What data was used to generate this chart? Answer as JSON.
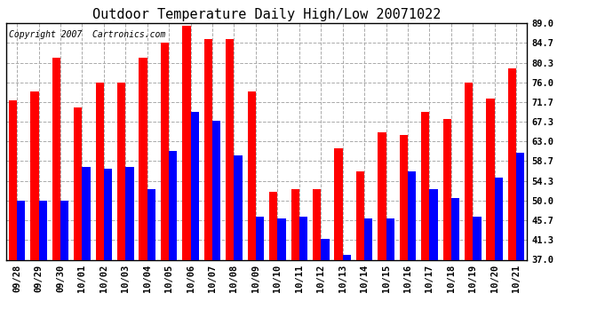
{
  "title": "Outdoor Temperature Daily High/Low 20071022",
  "copyright_text": "Copyright 2007  Cartronics.com",
  "categories": [
    "09/28",
    "09/29",
    "09/30",
    "10/01",
    "10/02",
    "10/03",
    "10/04",
    "10/05",
    "10/06",
    "10/07",
    "10/08",
    "10/09",
    "10/10",
    "10/11",
    "10/12",
    "10/13",
    "10/14",
    "10/15",
    "10/16",
    "10/17",
    "10/18",
    "10/19",
    "10/20",
    "10/21"
  ],
  "high_temps": [
    72.0,
    74.0,
    81.5,
    70.5,
    76.0,
    76.0,
    81.5,
    84.7,
    88.5,
    85.5,
    85.5,
    74.0,
    52.0,
    52.5,
    52.5,
    61.5,
    56.5,
    65.0,
    64.5,
    69.5,
    68.0,
    76.0,
    72.5,
    79.0
  ],
  "low_temps": [
    50.0,
    50.0,
    50.0,
    57.5,
    57.0,
    57.5,
    52.5,
    61.0,
    69.5,
    67.5,
    60.0,
    46.5,
    46.0,
    46.5,
    41.5,
    38.0,
    46.0,
    46.0,
    56.5,
    52.5,
    50.5,
    46.5,
    55.0,
    60.5
  ],
  "high_color": "#ff0000",
  "low_color": "#0000ff",
  "bg_color": "#ffffff",
  "grid_color": "#aaaaaa",
  "yticks": [
    37.0,
    41.3,
    45.7,
    50.0,
    54.3,
    58.7,
    63.0,
    67.3,
    71.7,
    76.0,
    80.3,
    84.7,
    89.0
  ],
  "ymin": 37.0,
  "ymax": 89.0,
  "title_fontsize": 11,
  "copyright_fontsize": 7,
  "tick_fontsize": 7.5,
  "bar_width": 0.38
}
